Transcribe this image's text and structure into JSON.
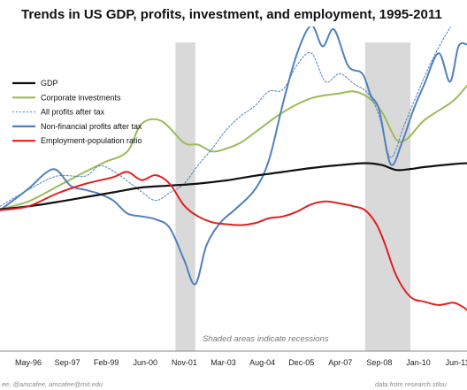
{
  "chart_data": {
    "type": "line",
    "title": "Trends in US GDP, profits, investment, and employment, 1995-2011",
    "xlabel": "",
    "ylabel": "",
    "x_tick_labels": [
      "May-96",
      "Sep-97",
      "Feb-99",
      "Jun-00",
      "Nov-01",
      "Mar-03",
      "Aug-04",
      "Dec-05",
      "Apr-07",
      "Sep-08",
      "Jan-10",
      "Jun-11"
    ],
    "x_range": [
      1995.0,
      2011.5
    ],
    "y_range": [
      0,
      100
    ],
    "grid": false,
    "legend_position": "top-left",
    "recessions": [
      [
        2001.2,
        2001.9
      ],
      [
        2007.9,
        2009.5
      ]
    ],
    "annotation": "Shaded areas indicate recessions",
    "credit_left": "ee, @amcafee, amcafee@mit.edu",
    "credit_right": "data from research.stlou",
    "colors": {
      "gdp": "#111111",
      "corporate_investments": "#9bbb59",
      "all_profits": "#4f81bd",
      "nonfinancial_profits": "#4f81bd",
      "employment_ratio": "#e02020",
      "recession": "#d9d9d9"
    },
    "series": [
      {
        "name": "GDP",
        "style": "solid",
        "x": [
          1995.0,
          1996.0,
          1997.0,
          1998.0,
          1999.0,
          2000.0,
          2001.0,
          2002.0,
          2003.0,
          2004.0,
          2005.0,
          2006.0,
          2007.0,
          2007.9,
          2008.5,
          2009.0,
          2009.5,
          2010.0,
          2011.0,
          2011.5
        ],
        "y": [
          43.7,
          44.6,
          45.9,
          47.4,
          48.9,
          50.4,
          51.0,
          51.6,
          52.6,
          54.0,
          55.2,
          56.4,
          57.3,
          57.9,
          57.3,
          55.8,
          56.1,
          56.7,
          57.6,
          57.9
        ]
      },
      {
        "name": "Corporate investments",
        "style": "solid",
        "x": [
          1995.0,
          1996.0,
          1997.0,
          1998.0,
          1998.7,
          1999.5,
          2000.0,
          2000.7,
          2001.5,
          2002.0,
          2002.5,
          2003.0,
          2003.5,
          2004.0,
          2005.0,
          2006.0,
          2007.0,
          2007.5,
          2008.0,
          2008.5,
          2009.0,
          2009.4,
          2010.0,
          2011.0,
          2011.5
        ],
        "y": [
          43.7,
          46.1,
          50.6,
          55.2,
          58.2,
          61.5,
          70.0,
          70.9,
          64.2,
          63.6,
          61.5,
          62.4,
          64.2,
          67.3,
          73.6,
          77.9,
          79.4,
          80.0,
          78.2,
          73.6,
          65.2,
          65.5,
          71.2,
          77.0,
          81.8
        ]
      },
      {
        "name": "All profits after tax",
        "style": "dashed",
        "x": [
          1995.0,
          1996.0,
          1997.0,
          1998.0,
          1998.5,
          1999.0,
          2000.0,
          2000.5,
          2001.0,
          2001.5,
          2002.0,
          2002.5,
          2003.0,
          2003.5,
          2004.0,
          2004.5,
          2005.0,
          2005.5,
          2006.0,
          2006.5,
          2007.0,
          2007.5,
          2008.0,
          2008.4,
          2008.8,
          2009.3,
          2010.0,
          2010.5,
          2011.0,
          2011.5
        ],
        "y": [
          44.6,
          49.7,
          53.9,
          53.9,
          57.0,
          55.5,
          49.1,
          46.4,
          48.8,
          51.5,
          57.3,
          62.4,
          68.2,
          72.4,
          75.5,
          80.0,
          80.6,
          88.2,
          91.8,
          83.0,
          85.5,
          82.4,
          79.4,
          72.4,
          59.7,
          70.0,
          84.6,
          93.6,
          101.2,
          109.4
        ]
      },
      {
        "name": "Non-financial profits after tax",
        "style": "solid",
        "x": [
          1995.0,
          1996.0,
          1996.6,
          1997.0,
          1997.5,
          1998.0,
          1998.5,
          1999.0,
          1999.5,
          2000.0,
          2000.5,
          2001.0,
          2001.5,
          2001.9,
          2002.3,
          2002.8,
          2003.3,
          2004.0,
          2004.5,
          2005.0,
          2005.5,
          2006.0,
          2006.4,
          2006.8,
          2007.3,
          2007.8,
          2008.1,
          2008.4,
          2008.8,
          2009.2,
          2009.6,
          2010.0,
          2010.5,
          2010.9,
          2011.2,
          2011.5
        ],
        "y": [
          43.4,
          50.0,
          54.8,
          55.8,
          50.9,
          49.7,
          48.5,
          46.4,
          42.4,
          41.5,
          40.6,
          37.9,
          28.2,
          20.6,
          32.7,
          39.7,
          43.6,
          49.7,
          58.8,
          76.4,
          91.8,
          100.3,
          93.9,
          99.1,
          87.9,
          85.5,
          78.8,
          74.2,
          57.6,
          64.2,
          74.2,
          82.4,
          91.8,
          83.0,
          93.9,
          94.5
        ]
      },
      {
        "name": "Employment-population ratio",
        "style": "solid",
        "x": [
          1995.0,
          1996.0,
          1997.0,
          1998.0,
          1999.0,
          1999.5,
          2000.0,
          2000.5,
          2001.0,
          2001.5,
          2002.0,
          2002.5,
          2003.0,
          2003.5,
          2004.0,
          2004.5,
          2005.0,
          2005.5,
          2006.0,
          2006.5,
          2007.0,
          2007.5,
          2007.9,
          2008.3,
          2008.6,
          2009.0,
          2009.5,
          2010.0,
          2010.5,
          2011.0,
          2011.3,
          2011.5
        ],
        "y": [
          43.4,
          44.6,
          48.5,
          51.5,
          53.6,
          55.2,
          52.7,
          54.2,
          51.5,
          44.9,
          41.5,
          39.7,
          39.1,
          38.8,
          39.4,
          40.9,
          41.5,
          43.0,
          45.2,
          46.1,
          45.5,
          44.6,
          43.4,
          39.1,
          33.0,
          23.3,
          16.7,
          15.2,
          14.2,
          14.9,
          13.9,
          12.7
        ]
      }
    ]
  }
}
